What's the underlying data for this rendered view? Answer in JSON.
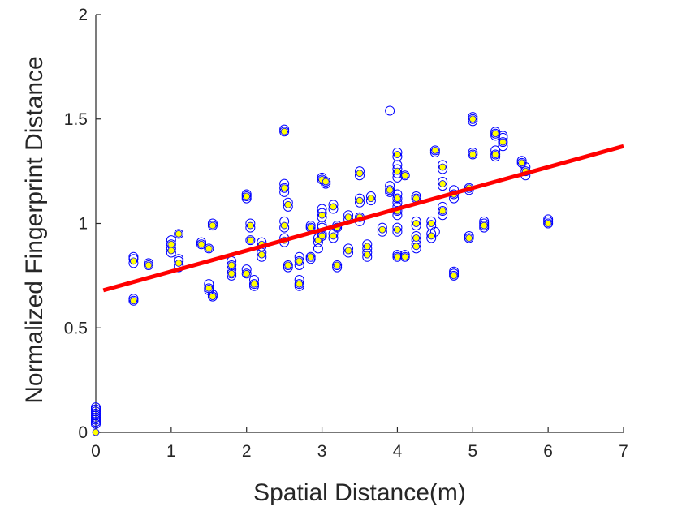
{
  "chart_data": {
    "type": "scatter",
    "title": "",
    "xlabel": "Spatial Distance(m)",
    "ylabel": "Normalized Fingerprint Distance",
    "xlim": [
      0,
      7
    ],
    "ylim": [
      0,
      2
    ],
    "xticks": [
      "0",
      "1",
      "2",
      "3",
      "4",
      "5",
      "6",
      "7"
    ],
    "yticks": [
      "0",
      "0.5",
      "1",
      "1.5",
      "2"
    ],
    "grid": false,
    "series": [
      {
        "marker": "open-circle",
        "color": "#0000ff",
        "points": [
          [
            0,
            0.04
          ],
          [
            0,
            0.05
          ],
          [
            0,
            0.06
          ],
          [
            0,
            0.07
          ],
          [
            0,
            0.08
          ],
          [
            0,
            0.09
          ],
          [
            0,
            0.1
          ],
          [
            0,
            0.11
          ],
          [
            0,
            0.12
          ],
          [
            0.5,
            0.84
          ],
          [
            0.5,
            0.83
          ],
          [
            0.5,
            0.81
          ],
          [
            0.5,
            0.64
          ],
          [
            0.5,
            0.63
          ],
          [
            0.7,
            0.8
          ],
          [
            0.7,
            0.81
          ],
          [
            1,
            0.92
          ],
          [
            1,
            0.9
          ],
          [
            1,
            0.88
          ],
          [
            1,
            0.86
          ],
          [
            1.1,
            0.95
          ],
          [
            1.1,
            0.83
          ],
          [
            1.1,
            0.82
          ],
          [
            1.1,
            0.8
          ],
          [
            1.1,
            0.79
          ],
          [
            1.4,
            0.9
          ],
          [
            1.4,
            0.91
          ],
          [
            1.5,
            0.88
          ],
          [
            1.5,
            0.71
          ],
          [
            1.5,
            0.69
          ],
          [
            1.5,
            0.68
          ],
          [
            1.55,
            0.65
          ],
          [
            1.55,
            0.66
          ],
          [
            1.55,
            0.99
          ],
          [
            1.55,
            1.0
          ],
          [
            1.8,
            0.82
          ],
          [
            1.8,
            0.8
          ],
          [
            1.8,
            0.78
          ],
          [
            1.8,
            0.76
          ],
          [
            1.8,
            0.75
          ],
          [
            2,
            1.14
          ],
          [
            2,
            1.13
          ],
          [
            2,
            1.12
          ],
          [
            2,
            0.78
          ],
          [
            2,
            0.76
          ],
          [
            2.05,
            1.0
          ],
          [
            2.05,
            0.98
          ],
          [
            2.05,
            0.92
          ],
          [
            2.1,
            0.73
          ],
          [
            2.1,
            0.71
          ],
          [
            2.1,
            0.7
          ],
          [
            2.2,
            0.91
          ],
          [
            2.2,
            0.89
          ],
          [
            2.2,
            0.86
          ],
          [
            2.2,
            0.84
          ],
          [
            2.5,
            1.45
          ],
          [
            2.5,
            1.44
          ],
          [
            2.5,
            1.19
          ],
          [
            2.5,
            1.17
          ],
          [
            2.5,
            1.15
          ],
          [
            2.5,
            1.01
          ],
          [
            2.5,
            0.98
          ],
          [
            2.5,
            0.93
          ],
          [
            2.5,
            0.91
          ],
          [
            2.55,
            1.1
          ],
          [
            2.55,
            1.08
          ],
          [
            2.55,
            0.8
          ],
          [
            2.55,
            0.79
          ],
          [
            2.7,
            0.84
          ],
          [
            2.7,
            0.82
          ],
          [
            2.7,
            0.8
          ],
          [
            2.7,
            0.73
          ],
          [
            2.7,
            0.71
          ],
          [
            2.7,
            0.7
          ],
          [
            2.85,
            0.99
          ],
          [
            2.85,
            0.98
          ],
          [
            2.85,
            0.84
          ],
          [
            2.85,
            0.83
          ],
          [
            2.95,
            0.93
          ],
          [
            2.95,
            0.91
          ],
          [
            2.95,
            0.88
          ],
          [
            3,
            1.22
          ],
          [
            3,
            1.21
          ],
          [
            3,
            1.07
          ],
          [
            3,
            1.05
          ],
          [
            3,
            1.03
          ],
          [
            3,
            0.99
          ],
          [
            3,
            0.98
          ],
          [
            3,
            0.95
          ],
          [
            3,
            0.94
          ],
          [
            3.05,
            1.2
          ],
          [
            3.05,
            1.19
          ],
          [
            3.15,
            1.09
          ],
          [
            3.15,
            1.07
          ],
          [
            3.15,
            0.95
          ],
          [
            3.15,
            0.93
          ],
          [
            3.2,
            0.8
          ],
          [
            3.2,
            0.79
          ],
          [
            3.2,
            0.99
          ],
          [
            3.2,
            0.98
          ],
          [
            3.35,
            1.04
          ],
          [
            3.35,
            1.02
          ],
          [
            3.35,
            0.88
          ],
          [
            3.35,
            0.86
          ],
          [
            3.5,
            1.25
          ],
          [
            3.5,
            1.23
          ],
          [
            3.5,
            1.12
          ],
          [
            3.5,
            1.1
          ],
          [
            3.5,
            1.03
          ],
          [
            3.5,
            1.01
          ],
          [
            3.6,
            0.9
          ],
          [
            3.6,
            0.88
          ],
          [
            3.6,
            0.86
          ],
          [
            3.6,
            0.84
          ],
          [
            3.65,
            1.13
          ],
          [
            3.65,
            1.11
          ],
          [
            3.8,
            0.98
          ],
          [
            3.8,
            0.96
          ],
          [
            3.9,
            1.54
          ],
          [
            3.9,
            1.18
          ],
          [
            3.9,
            1.16
          ],
          [
            3.9,
            1.15
          ],
          [
            4,
            1.34
          ],
          [
            4,
            1.32
          ],
          [
            4,
            1.28
          ],
          [
            4,
            1.26
          ],
          [
            4,
            1.24
          ],
          [
            4,
            1.22
          ],
          [
            4,
            1.14
          ],
          [
            4,
            1.12
          ],
          [
            4,
            1.1
          ],
          [
            4,
            1.08
          ],
          [
            4,
            1.06
          ],
          [
            4,
            1.04
          ],
          [
            4,
            0.98
          ],
          [
            4,
            0.96
          ],
          [
            4,
            0.85
          ],
          [
            4,
            0.84
          ],
          [
            4.1,
            1.23
          ],
          [
            4.1,
            0.85
          ],
          [
            4.1,
            0.84
          ],
          [
            4.25,
            1.13
          ],
          [
            4.25,
            1.12
          ],
          [
            4.25,
            1.01
          ],
          [
            4.25,
            0.99
          ],
          [
            4.25,
            0.94
          ],
          [
            4.25,
            0.92
          ],
          [
            4.25,
            0.9
          ],
          [
            4.25,
            0.88
          ],
          [
            4.45,
            1.01
          ],
          [
            4.45,
            0.99
          ],
          [
            4.45,
            0.95
          ],
          [
            4.45,
            0.93
          ],
          [
            4.5,
            1.35
          ],
          [
            4.5,
            1.34
          ],
          [
            4.5,
            0.96
          ],
          [
            4.6,
            1.28
          ],
          [
            4.6,
            1.26
          ],
          [
            4.6,
            1.2
          ],
          [
            4.6,
            1.18
          ],
          [
            4.6,
            1.08
          ],
          [
            4.6,
            1.06
          ],
          [
            4.6,
            1.04
          ],
          [
            4.75,
            1.16
          ],
          [
            4.75,
            1.14
          ],
          [
            4.75,
            1.12
          ],
          [
            4.75,
            0.77
          ],
          [
            4.75,
            0.76
          ],
          [
            4.75,
            0.75
          ],
          [
            4.95,
            1.17
          ],
          [
            4.95,
            1.16
          ],
          [
            4.95,
            0.94
          ],
          [
            4.95,
            0.93
          ],
          [
            5,
            1.51
          ],
          [
            5,
            1.5
          ],
          [
            5,
            1.49
          ],
          [
            5,
            1.34
          ],
          [
            5,
            1.33
          ],
          [
            5.15,
            1.01
          ],
          [
            5.15,
            1.0
          ],
          [
            5.15,
            0.99
          ],
          [
            5.15,
            0.98
          ],
          [
            5.3,
            1.44
          ],
          [
            5.3,
            1.43
          ],
          [
            5.3,
            1.42
          ],
          [
            5.3,
            1.35
          ],
          [
            5.3,
            1.33
          ],
          [
            5.3,
            1.32
          ],
          [
            5.4,
            1.42
          ],
          [
            5.4,
            1.41
          ],
          [
            5.4,
            1.39
          ],
          [
            5.4,
            1.37
          ],
          [
            5.65,
            1.3
          ],
          [
            5.65,
            1.29
          ],
          [
            5.7,
            1.27
          ],
          [
            5.7,
            1.25
          ],
          [
            5.7,
            1.23
          ],
          [
            6,
            1.02
          ],
          [
            6,
            1.01
          ],
          [
            6,
            1.0
          ]
        ]
      },
      {
        "marker": "filled-dot",
        "color": "#ffff00",
        "points": [
          [
            0,
            0.0
          ],
          [
            0.5,
            0.82
          ],
          [
            0.5,
            0.63
          ],
          [
            0.7,
            0.8
          ],
          [
            1,
            0.9
          ],
          [
            1,
            0.87
          ],
          [
            1.1,
            0.95
          ],
          [
            1.1,
            0.81
          ],
          [
            1.4,
            0.9
          ],
          [
            1.5,
            0.88
          ],
          [
            1.5,
            0.69
          ],
          [
            1.55,
            0.99
          ],
          [
            1.55,
            0.65
          ],
          [
            1.8,
            0.8
          ],
          [
            1.8,
            0.76
          ],
          [
            2,
            1.13
          ],
          [
            2,
            0.76
          ],
          [
            2.05,
            0.99
          ],
          [
            2.05,
            0.92
          ],
          [
            2.1,
            0.71
          ],
          [
            2.2,
            0.9
          ],
          [
            2.2,
            0.85
          ],
          [
            2.5,
            1.44
          ],
          [
            2.5,
            1.17
          ],
          [
            2.5,
            0.99
          ],
          [
            2.5,
            0.92
          ],
          [
            2.55,
            1.09
          ],
          [
            2.55,
            0.8
          ],
          [
            2.7,
            0.82
          ],
          [
            2.7,
            0.71
          ],
          [
            2.85,
            0.98
          ],
          [
            2.85,
            0.84
          ],
          [
            2.95,
            0.92
          ],
          [
            3,
            1.21
          ],
          [
            3,
            1.04
          ],
          [
            3,
            0.94
          ],
          [
            3.05,
            1.2
          ],
          [
            3.15,
            1.08
          ],
          [
            3.15,
            0.94
          ],
          [
            3.2,
            0.8
          ],
          [
            3.2,
            0.98
          ],
          [
            3.35,
            1.03
          ],
          [
            3.35,
            0.87
          ],
          [
            3.5,
            1.24
          ],
          [
            3.5,
            1.11
          ],
          [
            3.5,
            1.03
          ],
          [
            3.6,
            0.89
          ],
          [
            3.6,
            0.85
          ],
          [
            3.65,
            1.12
          ],
          [
            3.8,
            0.97
          ],
          [
            3.9,
            1.16
          ],
          [
            4,
            1.33
          ],
          [
            4,
            1.25
          ],
          [
            4,
            1.12
          ],
          [
            4,
            1.06
          ],
          [
            4,
            0.97
          ],
          [
            4,
            0.84
          ],
          [
            4.1,
            1.23
          ],
          [
            4.1,
            0.84
          ],
          [
            4.25,
            1.12
          ],
          [
            4.25,
            1.0
          ],
          [
            4.25,
            0.93
          ],
          [
            4.25,
            0.89
          ],
          [
            4.45,
            1.0
          ],
          [
            4.45,
            0.94
          ],
          [
            4.5,
            1.35
          ],
          [
            4.6,
            1.27
          ],
          [
            4.6,
            1.19
          ],
          [
            4.6,
            1.06
          ],
          [
            4.75,
            1.14
          ],
          [
            4.75,
            0.75
          ],
          [
            4.95,
            1.17
          ],
          [
            4.95,
            0.93
          ],
          [
            5,
            1.5
          ],
          [
            5,
            1.33
          ],
          [
            5.15,
            0.99
          ],
          [
            5.3,
            1.43
          ],
          [
            5.3,
            1.33
          ],
          [
            5.4,
            1.39
          ],
          [
            5.65,
            1.29
          ],
          [
            5.7,
            1.25
          ],
          [
            6,
            1.0
          ]
        ]
      }
    ],
    "fit_line": {
      "color": "#ff0000",
      "x": [
        0.1,
        7
      ],
      "y": [
        0.68,
        1.37
      ]
    }
  }
}
